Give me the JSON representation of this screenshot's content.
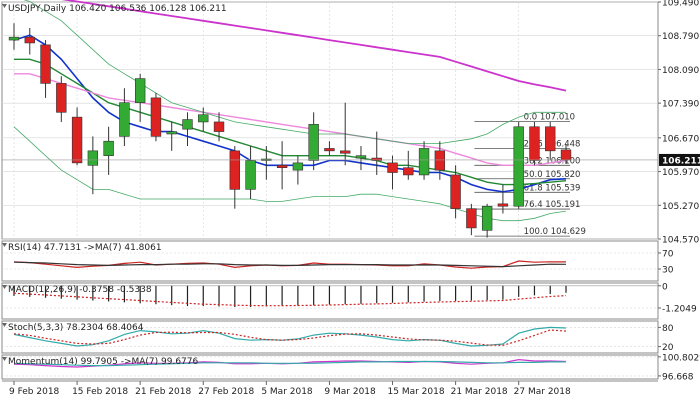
{
  "colors": {
    "up": "#33aa33",
    "down": "#dd2222",
    "wick": "#333333",
    "ma_blue": "#1133cc",
    "ma_green": "#228833",
    "ma_magenta": "#cc33cc",
    "ma_pink": "#ee88dd",
    "band": "#44aa66",
    "fib": "#555555",
    "price_tag_bg": "#111111",
    "price_tag_fg": "#ffffff",
    "rsi": "#cc2222",
    "rsi_ma": "#333333",
    "stoch_k": "#33aaaa",
    "stoch_d": "#cc2222",
    "momentum": "#cc33cc",
    "momentum_ma": "#33aaaa",
    "macd_ma": "#cc2222",
    "grid": "#d6d6d6"
  },
  "chart_data": [
    {
      "type": "candlestick",
      "title": "USDJPY,Daily",
      "header_values": [
        "106.420",
        "106.536",
        "106.128",
        "106.211"
      ],
      "ylim": [
        104.57,
        109.49
      ],
      "y_ticks": [
        "109.490",
        "108.790",
        "108.090",
        "107.390",
        "106.670",
        "105.970",
        "105.270",
        "104.570"
      ],
      "last_price": "106.211",
      "x_labels": [
        "9 Feb 2018",
        "15 Feb 2018",
        "21 Feb 2018",
        "27 Feb 2018",
        "5 Mar 2018",
        "9 Mar 2018",
        "15 Mar 2018",
        "21 Mar 2018",
        "27 Mar 2018"
      ],
      "x_label_bars": [
        0,
        4,
        8,
        12,
        16,
        20,
        24,
        28,
        32
      ],
      "candles": [
        {
          "o": 108.7,
          "h": 109.05,
          "l": 108.5,
          "c": 108.76
        },
        {
          "o": 108.76,
          "h": 108.95,
          "l": 108.4,
          "c": 108.64
        },
        {
          "o": 108.6,
          "h": 108.7,
          "l": 107.5,
          "c": 107.8
        },
        {
          "o": 107.8,
          "h": 107.95,
          "l": 107.0,
          "c": 107.2
        },
        {
          "o": 107.1,
          "h": 107.3,
          "l": 106.1,
          "c": 106.15
        },
        {
          "o": 106.1,
          "h": 106.7,
          "l": 105.5,
          "c": 106.4
        },
        {
          "o": 106.3,
          "h": 106.9,
          "l": 105.9,
          "c": 106.6
        },
        {
          "o": 106.7,
          "h": 107.7,
          "l": 106.5,
          "c": 107.4
        },
        {
          "o": 107.4,
          "h": 108.0,
          "l": 107.0,
          "c": 107.9
        },
        {
          "o": 107.5,
          "h": 107.6,
          "l": 106.6,
          "c": 106.7
        },
        {
          "o": 106.75,
          "h": 107.0,
          "l": 106.4,
          "c": 106.8
        },
        {
          "o": 106.85,
          "h": 107.2,
          "l": 106.5,
          "c": 107.05
        },
        {
          "o": 107.0,
          "h": 107.3,
          "l": 106.8,
          "c": 107.15
        },
        {
          "o": 107.0,
          "h": 107.2,
          "l": 106.6,
          "c": 106.8
        },
        {
          "o": 106.4,
          "h": 106.5,
          "l": 105.2,
          "c": 105.6
        },
        {
          "o": 105.6,
          "h": 106.5,
          "l": 105.4,
          "c": 106.2
        },
        {
          "o": 106.2,
          "h": 106.5,
          "l": 105.8,
          "c": 106.23
        },
        {
          "o": 106.1,
          "h": 106.6,
          "l": 105.6,
          "c": 106.05
        },
        {
          "o": 106.0,
          "h": 106.3,
          "l": 105.7,
          "c": 106.15
        },
        {
          "o": 106.2,
          "h": 107.2,
          "l": 106.0,
          "c": 106.95
        },
        {
          "o": 106.45,
          "h": 106.6,
          "l": 106.3,
          "c": 106.4
        },
        {
          "o": 106.4,
          "h": 107.4,
          "l": 106.1,
          "c": 106.35
        },
        {
          "o": 106.25,
          "h": 106.5,
          "l": 106.0,
          "c": 106.3
        },
        {
          "o": 106.25,
          "h": 106.8,
          "l": 105.9,
          "c": 106.2
        },
        {
          "o": 106.15,
          "h": 106.3,
          "l": 105.6,
          "c": 105.95
        },
        {
          "o": 106.05,
          "h": 106.4,
          "l": 105.8,
          "c": 105.9
        },
        {
          "o": 105.9,
          "h": 106.6,
          "l": 105.8,
          "c": 106.45
        },
        {
          "o": 106.4,
          "h": 106.6,
          "l": 105.8,
          "c": 106.0
        },
        {
          "o": 105.9,
          "h": 106.1,
          "l": 105.0,
          "c": 105.2
        },
        {
          "o": 105.2,
          "h": 105.3,
          "l": 104.65,
          "c": 104.8
        },
        {
          "o": 104.75,
          "h": 105.3,
          "l": 104.6,
          "c": 105.25
        },
        {
          "o": 105.3,
          "h": 105.7,
          "l": 105.1,
          "c": 105.25
        },
        {
          "o": 105.25,
          "h": 107.0,
          "l": 105.2,
          "c": 106.9
        },
        {
          "o": 106.9,
          "h": 107.0,
          "l": 106.1,
          "c": 106.2
        },
        {
          "o": 106.9,
          "h": 107.0,
          "l": 106.2,
          "c": 106.4
        },
        {
          "o": 106.42,
          "h": 106.54,
          "l": 106.13,
          "c": 106.21
        }
      ],
      "series": [
        {
          "style": "blue",
          "values": [
            108.7,
            108.8,
            108.6,
            108.3,
            107.9,
            107.5,
            107.2,
            107.0,
            106.9,
            106.8,
            106.8,
            106.7,
            106.6,
            106.5,
            106.4,
            106.2,
            106.1,
            106.1,
            106.1,
            106.1,
            106.2,
            106.2,
            106.15,
            106.1,
            106.05,
            106.0,
            105.95,
            105.95,
            105.85,
            105.7,
            105.6,
            105.55,
            105.6,
            105.7,
            105.8,
            105.82
          ]
        },
        {
          "style": "green",
          "values": [
            108.3,
            108.3,
            108.2,
            108.0,
            107.8,
            107.6,
            107.4,
            107.3,
            107.2,
            107.1,
            107.0,
            106.9,
            106.8,
            106.7,
            106.6,
            106.5,
            106.4,
            106.3,
            106.3,
            106.3,
            106.3,
            106.3,
            106.25,
            106.2,
            106.1,
            106.1,
            106.05,
            106.0,
            105.95,
            105.85,
            105.75,
            105.7,
            105.7,
            105.72,
            105.75,
            105.78
          ]
        },
        {
          "style": "pink",
          "values": [
            108.0,
            108.0,
            107.9,
            107.8,
            107.7,
            107.6,
            107.5,
            107.45,
            107.4,
            107.35,
            107.3,
            107.25,
            107.2,
            107.15,
            107.1,
            107.05,
            107.0,
            106.95,
            106.9,
            106.85,
            106.8,
            106.75,
            106.7,
            106.65,
            106.6,
            106.55,
            106.5,
            106.45,
            106.35,
            106.25,
            106.15,
            106.1,
            106.1,
            106.1,
            106.15,
            106.2
          ]
        },
        {
          "style": "magenta",
          "values": [
            109.7,
            109.65,
            109.6,
            109.55,
            109.5,
            109.45,
            109.4,
            109.35,
            109.3,
            109.25,
            109.2,
            109.15,
            109.1,
            109.05,
            109.0,
            108.95,
            108.9,
            108.85,
            108.8,
            108.75,
            108.7,
            108.65,
            108.6,
            108.55,
            108.5,
            108.45,
            108.4,
            108.35,
            108.25,
            108.15,
            108.05,
            107.95,
            107.85,
            107.78,
            107.72,
            107.65
          ]
        },
        {
          "style": "band_upper",
          "values": [
            109.6,
            109.5,
            109.3,
            109.1,
            108.8,
            108.5,
            108.2,
            108.0,
            107.8,
            107.6,
            107.4,
            107.3,
            107.2,
            107.1,
            107.0,
            106.95,
            106.9,
            106.85,
            106.8,
            106.75,
            106.75,
            106.75,
            106.7,
            106.65,
            106.6,
            106.55,
            106.55,
            106.55,
            106.6,
            106.65,
            106.75,
            106.95,
            107.1,
            107.2,
            107.2,
            107.2
          ]
        },
        {
          "style": "band_lower",
          "values": [
            106.9,
            106.6,
            106.3,
            106.0,
            105.8,
            105.6,
            105.6,
            105.5,
            105.4,
            105.4,
            105.4,
            105.4,
            105.4,
            105.4,
            105.4,
            105.4,
            105.35,
            105.35,
            105.4,
            105.45,
            105.45,
            105.45,
            105.5,
            105.5,
            105.45,
            105.4,
            105.35,
            105.3,
            105.2,
            105.1,
            105.0,
            104.95,
            104.95,
            105.0,
            105.1,
            105.15
          ]
        }
      ],
      "fib_levels": [
        {
          "label": "0.0",
          "price": "107.010"
        },
        {
          "label": "23.6",
          "price": "106.448"
        },
        {
          "label": "38.2",
          "price": "106.100"
        },
        {
          "label": "50.0",
          "price": "105.820"
        },
        {
          "label": "61.8",
          "price": "105.539"
        },
        {
          "label": "76.4",
          "price": "105.191"
        },
        {
          "label": "100.0",
          "price": "104.629"
        }
      ]
    },
    {
      "type": "line",
      "title": "RSI(14) 47.7131 ->MA(7) 41.8061",
      "ylim": [
        0,
        100
      ],
      "y_ticks": [
        "70",
        "30"
      ],
      "series": [
        {
          "style": "rsi",
          "values": [
            48,
            46,
            42,
            38,
            34,
            37,
            39,
            44,
            47,
            40,
            42,
            44,
            45,
            42,
            34,
            38,
            40,
            38,
            39,
            45,
            42,
            42,
            41,
            40,
            38,
            38,
            43,
            40,
            35,
            32,
            35,
            36,
            50,
            47,
            48,
            47.7
          ]
        },
        {
          "style": "rsi_ma",
          "values": [
            47,
            46,
            45,
            43,
            41,
            40,
            39,
            40,
            41,
            41,
            42,
            42,
            43,
            43,
            41,
            40,
            40,
            39,
            39,
            40,
            41,
            41,
            41,
            41,
            40,
            40,
            40,
            40,
            39,
            38,
            37,
            36,
            38,
            40,
            42,
            41.8
          ]
        }
      ]
    },
    {
      "type": "bar",
      "title": "MACD(12,26,9) -0.3758 -0.5338",
      "ylim": [
        -1.8,
        0.15
      ],
      "y_ticks": [
        "0",
        "-1.2049"
      ],
      "values": [
        -0.55,
        -0.6,
        -0.65,
        -0.7,
        -0.75,
        -0.8,
        -0.85,
        -0.9,
        -0.95,
        -1.0,
        -1.05,
        -1.1,
        -1.1,
        -1.12,
        -1.15,
        -1.15,
        -1.12,
        -1.1,
        -1.08,
        -1.05,
        -1.02,
        -1.0,
        -0.98,
        -0.95,
        -0.92,
        -0.9,
        -0.86,
        -0.83,
        -0.82,
        -0.8,
        -0.78,
        -0.75,
        -0.6,
        -0.52,
        -0.45,
        -0.38
      ],
      "series": [
        {
          "style": "macd_ma",
          "values": [
            -0.4,
            -0.45,
            -0.5,
            -0.55,
            -0.6,
            -0.65,
            -0.7,
            -0.75,
            -0.8,
            -0.85,
            -0.9,
            -0.95,
            -1.0,
            -1.02,
            -1.05,
            -1.07,
            -1.08,
            -1.08,
            -1.07,
            -1.06,
            -1.04,
            -1.02,
            -1.0,
            -0.98,
            -0.96,
            -0.93,
            -0.9,
            -0.88,
            -0.86,
            -0.84,
            -0.82,
            -0.8,
            -0.72,
            -0.65,
            -0.58,
            -0.53
          ]
        }
      ]
    },
    {
      "type": "line",
      "title": "Stoch(5,3,3) 78.2304 68.4064",
      "ylim": [
        0,
        100
      ],
      "y_ticks": [
        "80",
        "20"
      ],
      "series": [
        {
          "style": "stoch_k",
          "values": [
            58,
            48,
            38,
            30,
            22,
            26,
            38,
            58,
            70,
            66,
            60,
            62,
            70,
            62,
            45,
            40,
            42,
            40,
            44,
            56,
            62,
            60,
            56,
            50,
            42,
            38,
            42,
            40,
            30,
            22,
            24,
            28,
            62,
            75,
            80,
            78.2
          ]
        },
        {
          "style": "stoch_d",
          "values": [
            60,
            55,
            46,
            38,
            30,
            28,
            30,
            42,
            56,
            64,
            65,
            63,
            64,
            64,
            58,
            49,
            42,
            40,
            42,
            47,
            54,
            59,
            60,
            56,
            50,
            44,
            41,
            40,
            37,
            31,
            25,
            24,
            38,
            55,
            72,
            68.4
          ]
        }
      ]
    },
    {
      "type": "line",
      "title": "Momentum(14) 99.7905 ->MA(7) 99.6776",
      "ylim": [
        96.0,
        101.2
      ],
      "y_ticks": [
        "100.8029",
        "96.668"
      ],
      "series": [
        {
          "style": "momentum",
          "values": [
            99.2,
            99.1,
            98.9,
            98.7,
            98.6,
            98.8,
            99.0,
            99.3,
            99.5,
            99.4,
            99.4,
            99.5,
            99.7,
            99.6,
            99.3,
            99.3,
            99.4,
            99.3,
            99.4,
            99.7,
            99.8,
            99.9,
            99.9,
            99.8,
            99.7,
            99.6,
            99.8,
            99.7,
            99.4,
            99.2,
            99.4,
            99.5,
            100.2,
            99.9,
            99.9,
            99.8
          ]
        },
        {
          "style": "momentum_ma",
          "values": [
            99.4,
            99.3,
            99.2,
            99.1,
            99.0,
            98.9,
            98.9,
            99.0,
            99.1,
            99.2,
            99.3,
            99.4,
            99.5,
            99.5,
            99.5,
            99.5,
            99.4,
            99.4,
            99.4,
            99.4,
            99.5,
            99.6,
            99.7,
            99.7,
            99.8,
            99.8,
            99.8,
            99.8,
            99.7,
            99.6,
            99.5,
            99.5,
            99.6,
            99.6,
            99.7,
            99.7
          ]
        }
      ]
    }
  ]
}
